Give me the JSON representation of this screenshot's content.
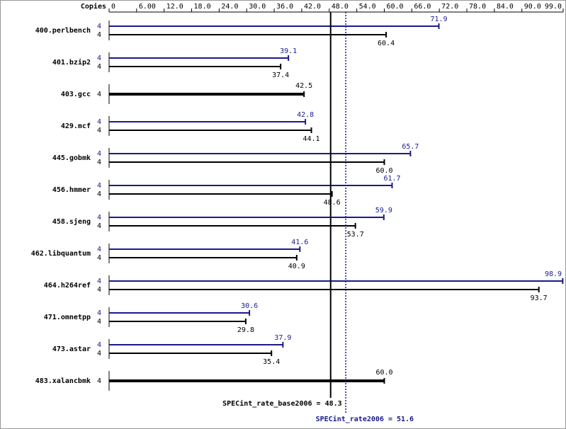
{
  "chart_data": {
    "type": "bar",
    "orientation": "horizontal",
    "x_label": "Copies",
    "categories": [
      "400.perlbench",
      "401.bzip2",
      "403.gcc",
      "429.mcf",
      "445.gobmk",
      "456.hmmer",
      "458.sjeng",
      "462.libquantum",
      "464.h264ref",
      "471.omnetpp",
      "473.astar",
      "483.xalancbmk"
    ],
    "series": [
      {
        "color": "#1a1a8c",
        "copies": [
          4,
          4,
          null,
          4,
          4,
          4,
          4,
          4,
          4,
          4,
          4,
          null
        ],
        "values": [
          71.9,
          39.1,
          null,
          42.8,
          65.7,
          61.7,
          59.9,
          41.6,
          98.9,
          30.6,
          37.9,
          null
        ],
        "value_labels": [
          "71.9",
          "39.1",
          null,
          "42.8",
          "65.7",
          "61.7",
          "59.9",
          "41.6",
          "98.9",
          "30.6",
          "37.9",
          null
        ]
      },
      {
        "color": "#000000",
        "copies": [
          4,
          4,
          4,
          4,
          4,
          4,
          4,
          4,
          4,
          4,
          4,
          4
        ],
        "values": [
          60.4,
          37.4,
          42.5,
          44.1,
          60.0,
          48.6,
          53.7,
          40.9,
          93.7,
          29.8,
          35.4,
          60.0
        ],
        "value_labels": [
          "60.4",
          "37.4",
          "42.5",
          "44.1",
          "60.0",
          "48.6",
          "53.7",
          "40.9",
          "93.7",
          "29.8",
          "35.4",
          "60.0"
        ]
      }
    ],
    "xlim": [
      0,
      99
    ],
    "xticks": [
      0,
      {
        "value": 6,
        "label": "6.00"
      },
      {
        "value": 12,
        "label": "12.0"
      },
      {
        "value": 18,
        "label": "18.0"
      },
      {
        "value": 24,
        "label": "24.0"
      },
      {
        "value": 30,
        "label": "30.0"
      },
      {
        "value": 36,
        "label": "36.0"
      },
      {
        "value": 42,
        "label": "42.0"
      },
      {
        "value": 48,
        "label": "48.0"
      },
      {
        "value": 54,
        "label": "54.0"
      },
      {
        "value": 60,
        "label": "60.0"
      },
      {
        "value": 66,
        "label": "66.0"
      },
      {
        "value": 72,
        "label": "72.0"
      },
      {
        "value": 78,
        "label": "78.0"
      },
      {
        "value": 84,
        "label": "84.0"
      },
      {
        "value": 90,
        "label": "90.0"
      },
      {
        "value": 99,
        "label": "99.0"
      }
    ],
    "reference_lines": [
      {
        "label": "SPECint_rate_base2006 =",
        "value": 48.3,
        "color": "#000000",
        "style": "solid"
      },
      {
        "label": "SPECint_rate2006 =",
        "value": 51.6,
        "color": "#1a1a8c",
        "style": "dotted"
      }
    ]
  }
}
